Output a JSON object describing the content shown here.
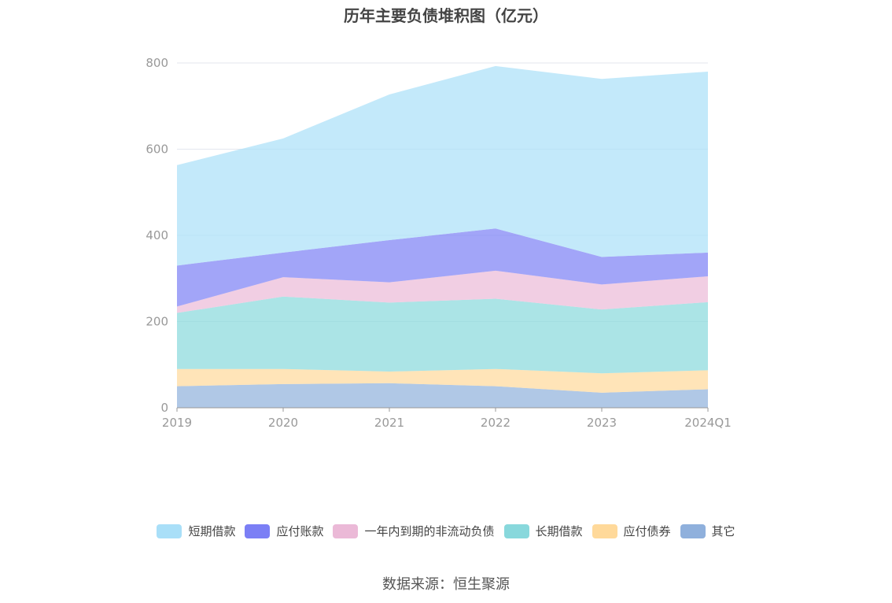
{
  "chart_data": {
    "type": "area",
    "stacked": true,
    "title": "历年主要负债堆积图（亿元）",
    "categories": [
      "2019",
      "2020",
      "2021",
      "2022",
      "2023",
      "2024Q1"
    ],
    "ylim": [
      0,
      800
    ],
    "yticks": [
      "0",
      "200",
      "400",
      "600",
      "800"
    ],
    "grid": true,
    "legend_position": "bottom",
    "series": [
      {
        "name": "其它",
        "color": "#8fb0dc",
        "values": [
          50,
          55,
          57,
          50,
          35,
          43
        ]
      },
      {
        "name": "应付债券",
        "color": "#ffd99a",
        "values": [
          40,
          35,
          27,
          40,
          45,
          44
        ]
      },
      {
        "name": "长期借款",
        "color": "#88d8dc",
        "values": [
          130,
          168,
          160,
          163,
          148,
          158
        ]
      },
      {
        "name": "一年内到期的非流动负债",
        "color": "#ebb9d7",
        "values": [
          15,
          45,
          47,
          65,
          58,
          60
        ]
      },
      {
        "name": "应付账款",
        "color": "#7b7ff5",
        "values": [
          95,
          57,
          98,
          98,
          64,
          55
        ]
      },
      {
        "name": "短期借款",
        "color": "#a9dff8",
        "values": [
          233,
          265,
          338,
          377,
          413,
          420
        ]
      }
    ]
  },
  "legend_order": [
    "短期借款",
    "应付账款",
    "一年内到期的非流动负债",
    "长期借款",
    "应付债券",
    "其它"
  ],
  "source_note": "数据来源：恒生聚源"
}
